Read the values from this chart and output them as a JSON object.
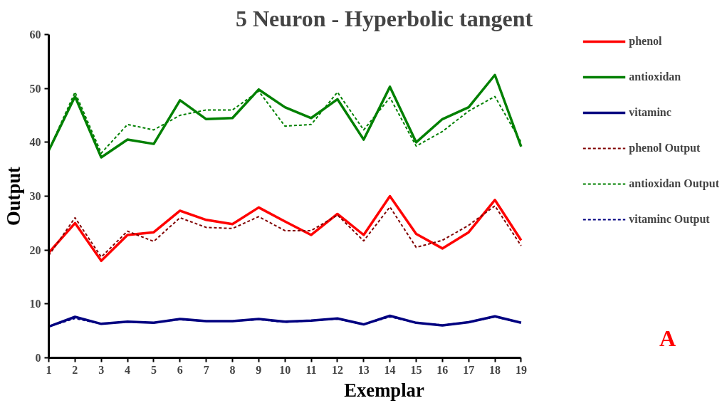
{
  "chart_data": {
    "type": "line",
    "title": "5 Neuron - Hyperbolic tangent",
    "xlabel": "Exemplar",
    "ylabel": "Output",
    "x": [
      1,
      2,
      3,
      4,
      5,
      6,
      7,
      8,
      9,
      10,
      11,
      12,
      13,
      14,
      15,
      16,
      17,
      18,
      19
    ],
    "xlim": [
      1,
      19
    ],
    "xticks": [
      1,
      2,
      3,
      4,
      5,
      6,
      7,
      8,
      9,
      10,
      11,
      12,
      13,
      14,
      15,
      16,
      17,
      18,
      19
    ],
    "ylim": [
      0,
      60
    ],
    "yticks": [
      0,
      10,
      20,
      30,
      40,
      50,
      60
    ],
    "grid": false,
    "legend": "right",
    "marker": "none",
    "annotations": [
      "A"
    ],
    "series": [
      {
        "name": "phenol",
        "color": "#ff0000",
        "line_style": "solid",
        "values": [
          19.5,
          25,
          18,
          22.8,
          23.3,
          27.3,
          25.6,
          24.8,
          27.9,
          25.3,
          22.8,
          26.7,
          22.8,
          30,
          23,
          20.3,
          23.3,
          29.3,
          21.8
        ]
      },
      {
        "name": "antioxidan",
        "color": "#008000",
        "line_style": "solid",
        "values": [
          38.5,
          48.5,
          37.2,
          40.5,
          39.7,
          47.8,
          44.3,
          44.5,
          49.8,
          46.5,
          44.5,
          48,
          40.5,
          50.3,
          40,
          44.3,
          46.5,
          52.5,
          39.2
        ]
      },
      {
        "name": "vitaminc",
        "color": "#000080",
        "line_style": "solid",
        "values": [
          5.8,
          7.6,
          6.3,
          6.7,
          6.5,
          7.2,
          6.8,
          6.8,
          7.2,
          6.7,
          6.9,
          7.3,
          6.2,
          7.8,
          6.5,
          6.0,
          6.6,
          7.7,
          6.5
        ]
      },
      {
        "name": "phenol Output",
        "color": "#800000",
        "line_style": "dashed",
        "values": [
          19,
          26,
          18.7,
          23.5,
          21.6,
          26,
          24.2,
          24,
          26.2,
          23.6,
          23.6,
          26.5,
          21.7,
          28,
          20.5,
          21.8,
          24.6,
          28.2,
          20.8
        ]
      },
      {
        "name": "antioxidan Output",
        "color": "#008000",
        "line_style": "dashed",
        "values": [
          38.5,
          49.3,
          38,
          43.3,
          42.3,
          45,
          46,
          46,
          49.5,
          43,
          43.3,
          49.3,
          42.3,
          48.3,
          39.3,
          42,
          45.8,
          48.5,
          40
        ]
      },
      {
        "name": "vitaminc Output",
        "color": "#000080",
        "line_style": "dashed",
        "values": [
          5.8,
          7.3,
          6.3,
          6.7,
          6.5,
          7.1,
          6.8,
          6.8,
          7.1,
          6.6,
          6.9,
          7.2,
          6.2,
          7.6,
          6.5,
          6.1,
          6.6,
          7.6,
          6.5
        ]
      }
    ]
  }
}
